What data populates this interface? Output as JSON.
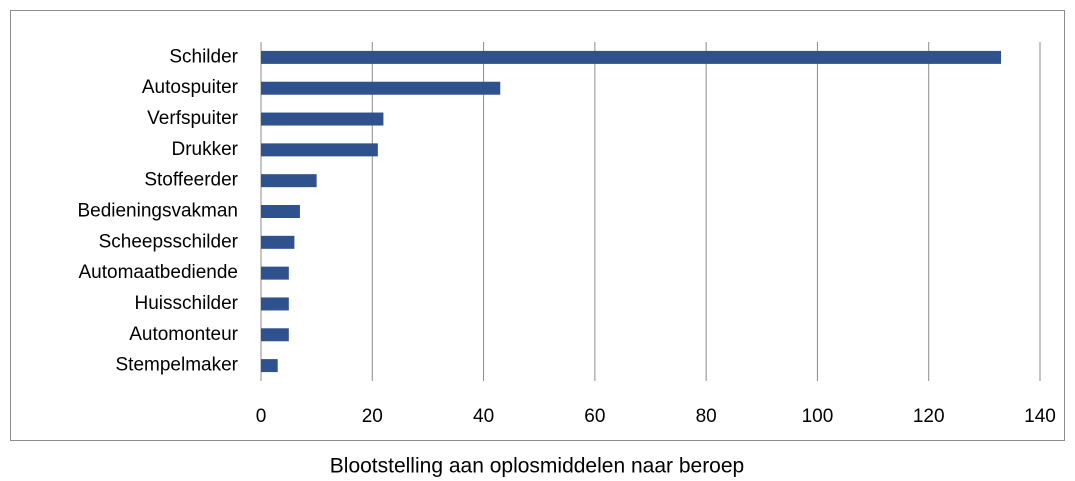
{
  "chart_data": {
    "type": "bar",
    "orientation": "horizontal",
    "title": "Blootstelling aan oplosmiddelen naar beroep",
    "categories": [
      "Schilder",
      "Autospuiter",
      "Verfspuiter",
      "Drukker",
      "Stoffeerder",
      "Bedieningsvakman",
      "Scheepsschilder",
      "Automaatbediende",
      "Huisschilder",
      "Automonteur",
      "Stempelmaker"
    ],
    "values": [
      133,
      43,
      22,
      21,
      10,
      7,
      6,
      5,
      5,
      5,
      3
    ],
    "color": "#2f528f",
    "xlim": [
      0,
      140
    ],
    "xticks": [
      0,
      20,
      40,
      60,
      80,
      100,
      120,
      140
    ],
    "grid": true
  }
}
